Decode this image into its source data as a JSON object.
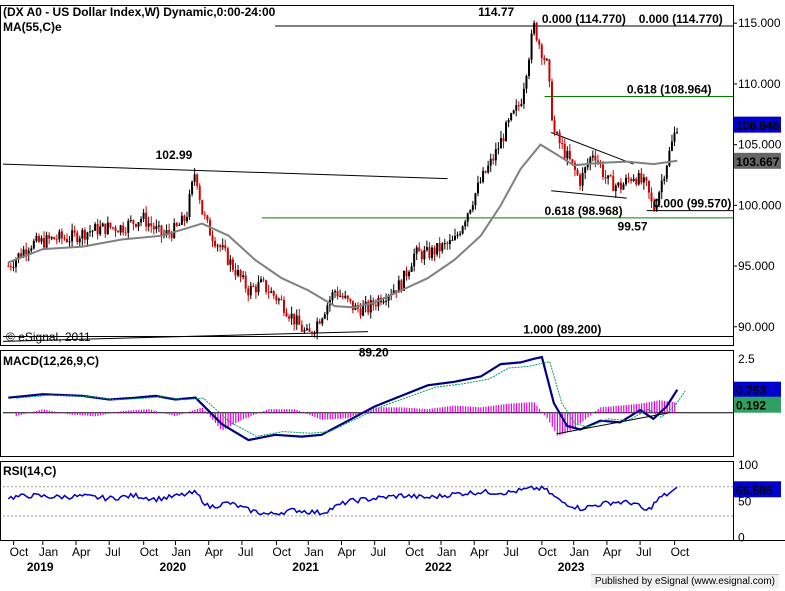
{
  "chart_data": [
    {
      "type": "candlestick",
      "title": "DX A0 - US Dollar Index,W",
      "header": "(DX A0 - US Dollar Index,W) Dynamic,0:00-24:00",
      "ma_label": "MA(55,C)e",
      "watermark": "© eSignal, 2011",
      "ylim": [
        88.5,
        116.5
      ],
      "y_ticks": [
        "115.000",
        "110.000",
        "105.000",
        "100.000",
        "95.000",
        "90.000"
      ],
      "y_tick_values": [
        115,
        110,
        105,
        100,
        95,
        90
      ],
      "last_price_label": "106.648",
      "last_price": 106.648,
      "ma_value_label": "103.667",
      "ma_value": 103.667,
      "close_series": {
        "x": [
          2018.74,
          2018.9,
          2019.0,
          2019.1,
          2019.2,
          2019.35,
          2019.5,
          2019.6,
          2019.75,
          2019.9,
          2020.0,
          2020.08,
          2020.15,
          2020.2,
          2020.25,
          2020.4,
          2020.55,
          2020.65,
          2020.8,
          2020.9,
          2021.0,
          2021.1,
          2021.2,
          2021.35,
          2021.45,
          2021.55,
          2021.7,
          2021.8,
          2021.9,
          2022.0,
          2022.1,
          2022.2,
          2022.3,
          2022.4,
          2022.5,
          2022.6,
          2022.7,
          2022.75,
          2022.8,
          2022.85,
          2022.95,
          2023.05,
          2023.15,
          2023.25,
          2023.35,
          2023.45,
          2023.55,
          2023.6,
          2023.65,
          2023.7,
          2023.78
        ],
        "values": [
          95.0,
          96.8,
          97.0,
          97.3,
          97.3,
          97.9,
          98.2,
          98.2,
          99.0,
          97.5,
          98.0,
          99.0,
          103.0,
          99.5,
          98.0,
          95.5,
          93.0,
          93.5,
          92.0,
          90.5,
          89.2,
          91.0,
          93.0,
          91.5,
          91.5,
          92.5,
          93.5,
          96.0,
          96.0,
          96.5,
          97.0,
          99.5,
          102.0,
          104.0,
          106.5,
          108.5,
          114.77,
          113.0,
          111.5,
          106.0,
          104.0,
          102.0,
          104.5,
          102.0,
          101.5,
          102.5,
          101.5,
          99.57,
          101.5,
          103.5,
          106.648
        ]
      },
      "ma_series": {
        "x": [
          2018.74,
          2019.0,
          2019.3,
          2019.6,
          2019.9,
          2020.2,
          2020.4,
          2020.6,
          2020.8,
          2021.0,
          2021.2,
          2021.35,
          2021.5,
          2021.7,
          2021.9,
          2022.1,
          2022.3,
          2022.45,
          2022.6,
          2022.75,
          2022.9,
          2023.0,
          2023.2,
          2023.4,
          2023.6,
          2023.78
        ],
        "values": [
          95.3,
          96.4,
          96.6,
          97.2,
          97.5,
          98.5,
          97.5,
          95.5,
          94.0,
          93.0,
          91.7,
          91.6,
          92.0,
          93.0,
          94.0,
          95.5,
          97.5,
          100.0,
          103.0,
          105.0,
          104.0,
          103.3,
          103.5,
          103.6,
          103.4,
          103.667
        ]
      },
      "horizontal_lines": [
        {
          "label": "0.000 (114.770)",
          "value": 114.77,
          "color": "#000000",
          "x_from": 2020.75
        },
        {
          "label": "0.618 (108.964)",
          "value": 108.964,
          "color": "#008000",
          "x_from": 2022.78
        },
        {
          "label": "0.000 (99.570)",
          "value": 99.57,
          "color": "#000000",
          "x_from": 2023.55
        },
        {
          "label": "0.618 (98.968)",
          "value": 98.968,
          "color": "#008000",
          "x_from": 2020.65
        },
        {
          "label": "1.000 (89.200)",
          "value": 89.2,
          "color": "#000000",
          "x_from": 2018.7
        }
      ],
      "extra_labels": [
        {
          "text": "0.000 (114.770)",
          "x": 2023.55,
          "value": 114.77
        },
        {
          "text": "114.77",
          "x": 2022.28,
          "value": 114.77
        },
        {
          "text": "102.99",
          "x": 2019.85,
          "value": 102.99
        },
        {
          "text": "99.57",
          "x": 2023.33,
          "value": 99.57
        },
        {
          "text": "89.20",
          "x": 2021.38,
          "value": 89.2
        }
      ],
      "trendlines": [
        {
          "x": [
            2018.7,
            2022.05
          ],
          "y": [
            103.4,
            102.2
          ],
          "color": "#000000"
        },
        {
          "x": [
            2018.7,
            2021.45
          ],
          "y": [
            88.8,
            89.6
          ],
          "color": "#000000"
        },
        {
          "x": [
            2022.83,
            2023.45
          ],
          "y": [
            106.0,
            103.4
          ],
          "color": "#000000"
        },
        {
          "x": [
            2022.83,
            2023.4
          ],
          "y": [
            101.2,
            100.6
          ],
          "color": "#000000"
        }
      ]
    },
    {
      "type": "line",
      "title": "MACD(12,26,9,C)",
      "ylim": [
        -3.0,
        3.0
      ],
      "y_ticks": [
        "2.5"
      ],
      "y_tick_values": [
        2.5
      ],
      "macd_value_label": "0.753",
      "macd_value": 0.753,
      "signal_value_label": "0.192",
      "signal_value": 0.192,
      "macd": {
        "x": [
          2018.74,
          2019.0,
          2019.3,
          2019.5,
          2019.7,
          2019.85,
          2020.0,
          2020.15,
          2020.35,
          2020.55,
          2020.75,
          2020.95,
          2021.1,
          2021.3,
          2021.5,
          2021.7,
          2021.9,
          2022.1,
          2022.3,
          2022.45,
          2022.6,
          2022.7,
          2022.76,
          2022.85,
          2022.95,
          2023.05,
          2023.2,
          2023.35,
          2023.5,
          2023.6,
          2023.7,
          2023.78
        ],
        "values": [
          0.3,
          0.5,
          0.4,
          0.2,
          0.3,
          0.4,
          0.2,
          0.3,
          -1.2,
          -2.1,
          -1.8,
          -1.9,
          -1.8,
          -1.0,
          -0.2,
          0.4,
          1.0,
          1.2,
          1.5,
          2.2,
          2.3,
          2.5,
          2.6,
          0.0,
          -1.3,
          -1.5,
          -1.0,
          -1.1,
          -0.4,
          -0.9,
          -0.2,
          0.753
        ]
      },
      "histogram": {
        "x": [
          2018.8,
          2019.0,
          2019.2,
          2019.4,
          2019.6,
          2019.8,
          2020.0,
          2020.2,
          2020.35,
          2020.5,
          2020.7,
          2020.9,
          2021.1,
          2021.3,
          2021.5,
          2021.7,
          2021.9,
          2022.1,
          2022.3,
          2022.5,
          2022.7,
          2022.8,
          2022.88,
          2022.95,
          2023.05,
          2023.2,
          2023.35,
          2023.5,
          2023.65,
          2023.78
        ],
        "values": [
          -0.2,
          0.2,
          -0.1,
          -0.2,
          0.1,
          0.2,
          -0.2,
          0.3,
          -1.0,
          -0.4,
          0.2,
          0.2,
          -0.4,
          -0.3,
          0.3,
          0.3,
          0.2,
          0.4,
          0.3,
          0.5,
          0.6,
          -0.3,
          -1.3,
          -1.1,
          -0.6,
          0.3,
          0.4,
          0.5,
          0.7,
          0.56
        ]
      },
      "zero_line": -0.55
    },
    {
      "type": "line",
      "title": "RSI(14,C)",
      "ylim": [
        0,
        100
      ],
      "y_ticks": [
        "100",
        "50",
        "0"
      ],
      "y_tick_values": [
        100,
        50,
        0
      ],
      "value_label": "66.585",
      "value": 66.585,
      "rsi": {
        "x": [
          2018.74,
          2018.9,
          2019.1,
          2019.3,
          2019.5,
          2019.7,
          2019.85,
          2020.0,
          2020.15,
          2020.25,
          2020.4,
          2020.55,
          2020.7,
          2020.9,
          2021.1,
          2021.3,
          2021.5,
          2021.7,
          2021.9,
          2022.1,
          2022.3,
          2022.5,
          2022.7,
          2022.78,
          2022.9,
          2023.05,
          2023.2,
          2023.3,
          2023.45,
          2023.55,
          2023.65,
          2023.78
        ],
        "values": [
          55,
          58,
          56,
          57,
          54,
          58,
          53,
          57,
          62,
          42,
          48,
          38,
          32,
          38,
          34,
          50,
          54,
          58,
          55,
          60,
          63,
          62,
          68,
          67,
          50,
          40,
          46,
          49,
          48,
          36,
          55,
          66.585
        ]
      },
      "guide_levels": [
        70,
        30
      ]
    }
  ],
  "x_axis": {
    "xlim": [
      2018.7,
      2024.2
    ],
    "months": [
      {
        "label": "Oct",
        "x": 2018.78
      },
      {
        "label": "Jan",
        "x": 2019.0
      },
      {
        "label": "Apr",
        "x": 2019.25
      },
      {
        "label": "Jul",
        "x": 2019.5
      },
      {
        "label": "Oct",
        "x": 2019.76
      },
      {
        "label": "Jan",
        "x": 2020.0
      },
      {
        "label": "Apr",
        "x": 2020.25
      },
      {
        "label": "Jul",
        "x": 2020.5
      },
      {
        "label": "Oct",
        "x": 2020.76
      },
      {
        "label": "Jan",
        "x": 2021.0
      },
      {
        "label": "Apr",
        "x": 2021.25
      },
      {
        "label": "Jul",
        "x": 2021.5
      },
      {
        "label": "Oct",
        "x": 2021.76
      },
      {
        "label": "Jan",
        "x": 2022.0
      },
      {
        "label": "Apr",
        "x": 2022.25
      },
      {
        "label": "Jul",
        "x": 2022.5
      },
      {
        "label": "Oct",
        "x": 2022.76
      },
      {
        "label": "Jan",
        "x": 2023.0
      },
      {
        "label": "Apr",
        "x": 2023.25
      },
      {
        "label": "Jul",
        "x": 2023.5
      },
      {
        "label": "Oct",
        "x": 2023.76
      }
    ],
    "years": [
      {
        "label": "2019",
        "x": 2019.0
      },
      {
        "label": "2020",
        "x": 2020.0
      },
      {
        "label": "2021",
        "x": 2021.0
      },
      {
        "label": "2022",
        "x": 2022.0
      },
      {
        "label": "2023",
        "x": 2023.0
      }
    ]
  },
  "footer": "Published by eSignal (www.esignal.com)",
  "colors": {
    "up": "#000000",
    "down": "#d00000",
    "ma": "#808080",
    "fib_green": "#008000",
    "macd": "#000080",
    "signal": "#00a060",
    "histogram": "#e000e0",
    "rsi": "#0000c8",
    "value_tag_blue": "#0000d0",
    "value_tag_gray": "#666666",
    "value_tag_green": "#30a060"
  }
}
